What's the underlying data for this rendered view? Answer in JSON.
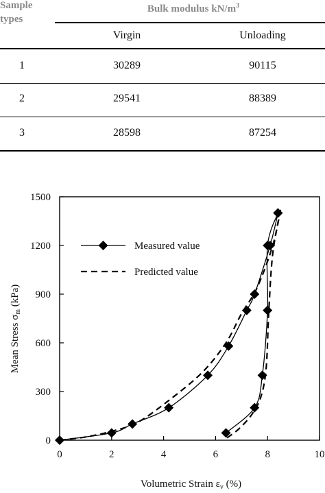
{
  "table": {
    "row_header": "Sample\ntypes",
    "group_header": "Bulk modulus kN/m",
    "group_header_sup": "3",
    "columns": [
      "Virgin",
      "Unloading"
    ],
    "rows": [
      {
        "type": "1",
        "virgin": "30289",
        "unloading": "90115"
      },
      {
        "type": "2",
        "virgin": "29541",
        "unloading": "88389"
      },
      {
        "type": "3",
        "virgin": "28598",
        "unloading": "87254"
      }
    ]
  },
  "chart_data": {
    "type": "line",
    "xlabel": "Volumetric Strain ε",
    "xlabel_sub": "v",
    "xlabel_unit": " (%)",
    "ylabel": "Mean Stress σ",
    "ylabel_sub": "m",
    "ylabel_unit": " (kPa)",
    "xlim": [
      0,
      10
    ],
    "ylim": [
      0,
      1500
    ],
    "xticks": [
      0,
      2,
      4,
      6,
      8,
      10
    ],
    "yticks": [
      0,
      300,
      600,
      900,
      1200,
      1500
    ],
    "grid": false,
    "legend_position": "upper-left inside",
    "series": [
      {
        "name": "Measured value",
        "style": "solid",
        "marker": "diamond",
        "loading": {
          "x": [
            0,
            2.0,
            2.8,
            4.2,
            5.7,
            6.5,
            7.2,
            7.5,
            8.1,
            8.4
          ],
          "y": [
            0,
            45,
            100,
            200,
            400,
            580,
            800,
            900,
            1200,
            1400
          ]
        },
        "unloading": {
          "x": [
            8.4,
            8.0,
            8.0,
            7.8,
            7.5,
            6.4
          ],
          "y": [
            1400,
            1200,
            800,
            400,
            200,
            45
          ]
        }
      },
      {
        "name": "Predicted value",
        "style": "dashed",
        "marker": "none",
        "loading": {
          "x": [
            0,
            1.0,
            2.0,
            3.0,
            4.2,
            5.5,
            6.4,
            7.0,
            7.6,
            8.2,
            8.5
          ],
          "y": [
            0,
            20,
            55,
            110,
            245,
            420,
            600,
            780,
            940,
            1200,
            1420
          ]
        },
        "unloading": {
          "x": [
            8.5,
            8.2,
            8.05,
            7.95,
            7.75,
            7.4,
            6.9,
            6.4
          ],
          "y": [
            1420,
            1150,
            800,
            450,
            270,
            160,
            70,
            10
          ]
        }
      }
    ]
  }
}
